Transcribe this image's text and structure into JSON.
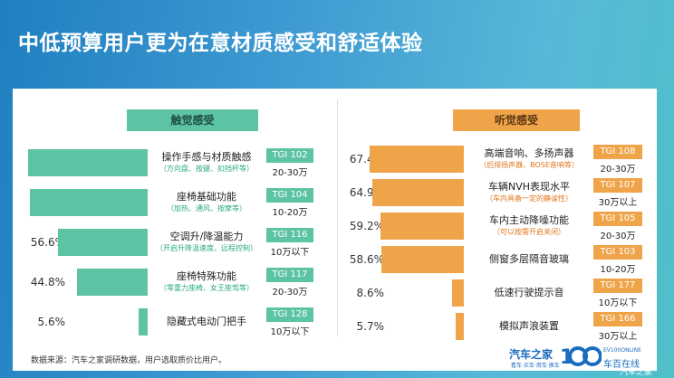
{
  "title": "中低预算用户更为在意材质感受和舒适体验",
  "touch": {
    "header": "触觉感受",
    "items": [
      {
        "pct": "75.2%",
        "value": 75.2,
        "main": "操作手感与材质触感",
        "sub": "（方向盘、按键、扣挡杆等）",
        "tgi": "TGI 102",
        "price": "20-30万"
      },
      {
        "pct": "74.4%",
        "value": 74.4,
        "main": "座椅基础功能",
        "sub": "（加热、通风、按摩等）",
        "tgi": "TGI 104",
        "price": "10-20万"
      },
      {
        "pct": "56.6%",
        "value": 56.6,
        "main": "空调升/降温能力",
        "sub": "（开启升降温速度、远程控制）",
        "tgi": "TGI 116",
        "price": "10万以下"
      },
      {
        "pct": "44.8%",
        "value": 44.8,
        "main": "座椅特殊功能",
        "sub": "（零重力座椅、女王座驾等）",
        "tgi": "TGI 117",
        "price": "20-30万"
      },
      {
        "pct": "5.6%",
        "value": 5.6,
        "main": "隐藏式电动门把手",
        "sub": "",
        "tgi": "TGI 128",
        "price": "10万以下"
      }
    ]
  },
  "hear": {
    "header": "听觉感受",
    "items": [
      {
        "pct": "67.4%",
        "value": 67.4,
        "main": "高端音响、多扬声器",
        "sub": "（后排扬声器、BOSE音响等）",
        "tgi": "TGI 108",
        "price": "20-30万"
      },
      {
        "pct": "64.9%",
        "value": 64.9,
        "main": "车辆NVH表现水平",
        "sub": "（车内具备一定的静谧性）",
        "tgi": "TGI 107",
        "price": "30万以上"
      },
      {
        "pct": "59.2%",
        "value": 59.2,
        "main": "车内主动降噪功能",
        "sub": "（可以按需开启关闭）",
        "tgi": "TGI 105",
        "price": "20-30万"
      },
      {
        "pct": "58.6%",
        "value": 58.6,
        "main": "侧窗多层隔音玻璃",
        "sub": "",
        "tgi": "TGI 103",
        "price": "10-20万"
      },
      {
        "pct": "8.6%",
        "value": 8.6,
        "main": "低速行驶提示音",
        "sub": "",
        "tgi": "TGI 177",
        "price": "10万以下"
      },
      {
        "pct": "5.7%",
        "value": 5.7,
        "main": "模拟声浪装置",
        "sub": "",
        "tgi": "TGI 166",
        "price": "30万以上"
      }
    ]
  },
  "source": "数据来源：汽车之家调研数据，用户选取质价比用户。",
  "logos": {
    "brand": "汽车之家",
    "brand_sub": "看车·买车·用车·换车",
    "partner_en": "EV100ONLINE",
    "partner_cn": "车百在线",
    "watermark": "汽车之家"
  },
  "colors": {
    "touch": "#5cc3a5",
    "hear": "#f0a44a",
    "title_bg": "#2a86c6"
  },
  "chart_data": [
    {
      "type": "bar",
      "title": "触觉感受",
      "categories": [
        "操作手感与材质触感",
        "座椅基础功能",
        "空调升/降温能力",
        "座椅特殊功能",
        "隐藏式电动门把手"
      ],
      "values": [
        75.2,
        74.4,
        56.6,
        44.8,
        5.6
      ]
    },
    {
      "type": "bar",
      "title": "听觉感受",
      "categories": [
        "高端音响、多扬声器",
        "车辆NVH表现水平",
        "车内主动降噪功能",
        "侧窗多层隔音玻璃",
        "低速行驶提示音",
        "模拟声浪装置"
      ],
      "values": [
        67.4,
        64.9,
        59.2,
        58.6,
        8.6,
        5.7
      ]
    }
  ]
}
